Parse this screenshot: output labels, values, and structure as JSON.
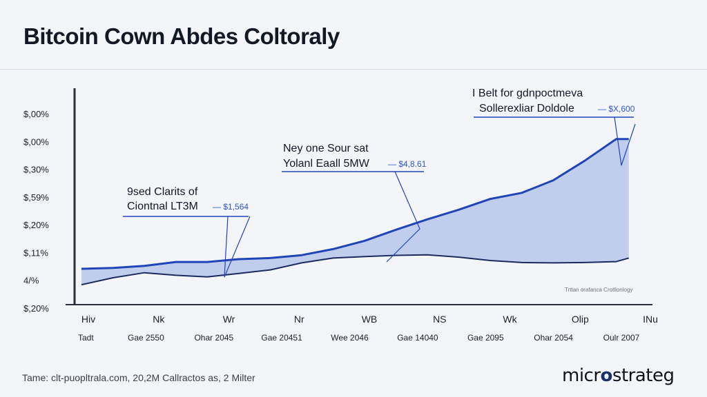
{
  "title": "Bitcoin Cown Abdes Coltoraly",
  "chart_data": {
    "type": "area",
    "y_tick_labels": [
      "$,00%",
      "$,00%",
      "$,30%",
      "$,59%",
      "$,20%",
      "$,11%",
      "4/%",
      "$,20%"
    ],
    "x_tick_labels_top": [
      "Hiv",
      "Nk",
      "Wr",
      "Nr",
      "WB",
      "NS",
      "Wk",
      "Olip",
      "INu"
    ],
    "x_tick_labels_bottom": [
      "Tadt",
      "Gae 2550",
      "Ohar 2045",
      "Gae 20451",
      "Wee 2046",
      "Gae 14040",
      "Gae 2095",
      "Ohar 2054",
      "Oulr 2007"
    ],
    "x": [
      0,
      0.5,
      1,
      1.5,
      2,
      2.5,
      3,
      3.5,
      4,
      4.5,
      5,
      5.5,
      6,
      6.5,
      7,
      7.5,
      8,
      8.5,
      8.7
    ],
    "series": [
      {
        "values": [
          0.8,
          0.85,
          0.96,
          1.18,
          1.18,
          1.34,
          1.4,
          1.56,
          1.9,
          2.36,
          2.98,
          3.56,
          4.1,
          4.7,
          5.04,
          5.74,
          6.83,
          8.04,
          8.04
        ]
      },
      {
        "values": [
          -0.09,
          0.3,
          0.58,
          0.44,
          0.35,
          0.54,
          0.74,
          1.13,
          1.4,
          1.48,
          1.55,
          1.58,
          1.45,
          1.26,
          1.15,
          1.13,
          1.15,
          1.2,
          1.4
        ]
      }
    ],
    "ylim": [
      -1.2,
      10.8
    ],
    "xlim": [
      0,
      9
    ],
    "annotations": [
      {
        "lines": [
          "9sed Clarits of",
          "Ciontnal LT3M"
        ],
        "value": "$1,564"
      },
      {
        "lines": [
          "Ney one Sour sat",
          "Yolanl Eaall 5MW"
        ],
        "value": "$4,8.61"
      },
      {
        "lines": [
          "I Belt for gdnpoctmeva",
          "Sollerexliar Doldole"
        ],
        "value": "$X,600"
      }
    ],
    "watermark": "Trttan orafanca Crotllonlogy",
    "colors": {
      "line": "#1f44b8",
      "fill": "#b7c6ea",
      "lower_line": "#1b2a5e",
      "axis": "#2a2f3a"
    }
  },
  "footer": {
    "source": "Tame: clt-puopltrala.com, 20,2M Callractos as, 2 Milter",
    "brand_prefix": "micr",
    "brand_mark": "o",
    "brand_suffix": "strateg"
  }
}
